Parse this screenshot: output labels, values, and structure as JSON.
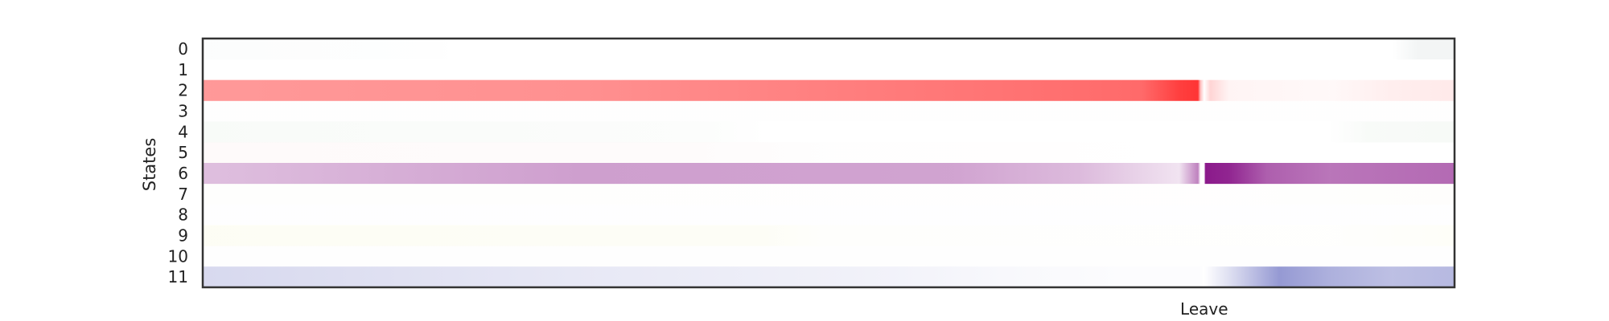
{
  "chart_data": {
    "type": "heatmap",
    "title": "",
    "xlabel": "",
    "ylabel": "States",
    "x_ticks": [
      {
        "label": "Leave",
        "position": 0.8
      }
    ],
    "x_range": [
      0,
      1
    ],
    "grid": false,
    "legend": "none",
    "states": [
      "0",
      "1",
      "2",
      "3",
      "4",
      "5",
      "6",
      "7",
      "8",
      "9",
      "10",
      "11"
    ],
    "rows": [
      {
        "state": "0",
        "color": "#cfd8d8",
        "segments": [
          [
            0,
            0.06
          ],
          [
            0.18,
            0.03
          ],
          [
            0.2,
            0.0
          ],
          [
            0.95,
            0.0
          ],
          [
            0.97,
            0.25
          ],
          [
            1.0,
            0.25
          ]
        ]
      },
      {
        "state": "1",
        "color": "#f0c8c8",
        "segments": [
          [
            0,
            0.0
          ],
          [
            1.0,
            0.0
          ]
        ]
      },
      {
        "state": "2",
        "color": "#ff2a2a",
        "segments": [
          [
            0,
            0.48
          ],
          [
            0.3,
            0.52
          ],
          [
            0.55,
            0.62
          ],
          [
            0.75,
            0.7
          ],
          [
            0.78,
            0.9
          ],
          [
            0.795,
            0.95
          ],
          [
            0.797,
            0.3
          ],
          [
            0.8,
            0.0
          ],
          [
            0.805,
            0.2
          ],
          [
            0.82,
            0.05
          ],
          [
            0.9,
            0.03
          ],
          [
            0.95,
            0.08
          ],
          [
            1.0,
            0.1
          ]
        ]
      },
      {
        "state": "3",
        "color": "#e8dede",
        "segments": [
          [
            0,
            0.02
          ],
          [
            1.0,
            0.02
          ]
        ]
      },
      {
        "state": "4",
        "color": "#c8dcc8",
        "segments": [
          [
            0,
            0.12
          ],
          [
            0.4,
            0.06
          ],
          [
            0.45,
            0.0
          ],
          [
            0.9,
            0.0
          ],
          [
            0.93,
            0.12
          ],
          [
            1.0,
            0.15
          ]
        ]
      },
      {
        "state": "5",
        "color": "#f0d0d0",
        "segments": [
          [
            0,
            0.1
          ],
          [
            0.4,
            0.08
          ],
          [
            0.5,
            0.03
          ],
          [
            0.8,
            0.0
          ],
          [
            1.0,
            0.0
          ]
        ]
      },
      {
        "state": "6",
        "color": "#8b1a8b",
        "segments": [
          [
            0,
            0.28
          ],
          [
            0.3,
            0.42
          ],
          [
            0.6,
            0.4
          ],
          [
            0.7,
            0.3
          ],
          [
            0.78,
            0.12
          ],
          [
            0.795,
            0.55
          ],
          [
            0.797,
            0.0
          ],
          [
            0.8,
            0.0
          ],
          [
            0.801,
            1.0
          ],
          [
            0.82,
            0.95
          ],
          [
            0.85,
            0.7
          ],
          [
            0.9,
            0.6
          ],
          [
            1.0,
            0.65
          ]
        ]
      },
      {
        "state": "7",
        "color": "#f0e0c8",
        "segments": [
          [
            0,
            0.04
          ],
          [
            0.8,
            0.02
          ],
          [
            1.0,
            0.06
          ]
        ]
      },
      {
        "state": "8",
        "color": "#e0e0f0",
        "segments": [
          [
            0,
            0.02
          ],
          [
            1.0,
            0.02
          ]
        ]
      },
      {
        "state": "9",
        "color": "#ececa8",
        "segments": [
          [
            0,
            0.12
          ],
          [
            0.45,
            0.1
          ],
          [
            0.5,
            0.03
          ],
          [
            0.9,
            0.02
          ],
          [
            1.0,
            0.08
          ]
        ]
      },
      {
        "state": "10",
        "color": "#e8d8e8",
        "segments": [
          [
            0,
            0.03
          ],
          [
            1.0,
            0.03
          ]
        ]
      },
      {
        "state": "11",
        "color": "#7b80c8",
        "segments": [
          [
            0,
            0.3
          ],
          [
            0.3,
            0.18
          ],
          [
            0.55,
            0.1
          ],
          [
            0.65,
            0.05
          ],
          [
            0.75,
            0.02
          ],
          [
            0.797,
            0.02
          ],
          [
            0.8,
            0.0
          ],
          [
            0.82,
            0.25
          ],
          [
            0.86,
            0.8
          ],
          [
            0.9,
            0.62
          ],
          [
            0.95,
            0.5
          ],
          [
            1.0,
            0.55
          ]
        ]
      }
    ]
  }
}
